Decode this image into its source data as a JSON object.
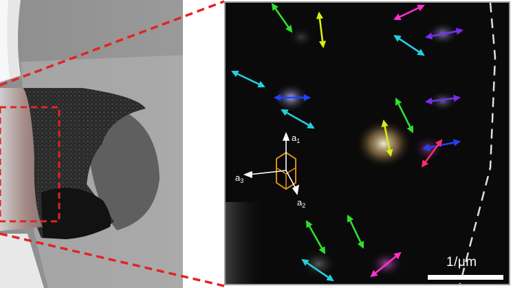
{
  "scale_bar": {
    "label": "1/μm"
  },
  "axes": {
    "a1": {
      "base": "a",
      "sub": "1"
    },
    "a2": {
      "base": "a",
      "sub": "2"
    },
    "a3": {
      "base": "a",
      "sub": "3"
    }
  },
  "colors": {
    "magenta": "#ff2fd0",
    "green": "#2ee02e",
    "yellow": "#d8ee10",
    "cyan": "#22cfe0",
    "violet": "#7a2cf0",
    "blue": "#2240ff",
    "pink": "#ff2a6a",
    "orange": "#e08a16",
    "dashed_guide": "#e0e0e0",
    "leader_line": "#e52222"
  }
}
